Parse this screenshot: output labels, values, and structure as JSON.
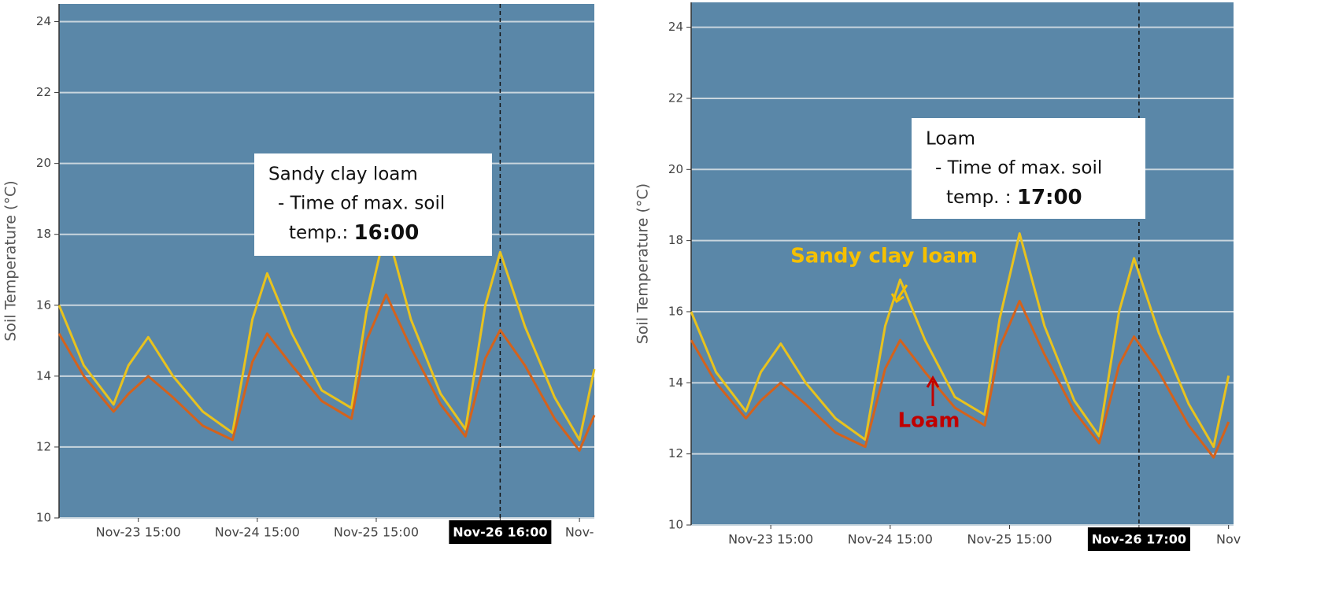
{
  "chart_data": [
    {
      "type": "line",
      "ylabel": "Soil Temperature (°C)",
      "x": [
        "Nov-22 23:00",
        "Nov-23 04:00",
        "Nov-23 10:00",
        "Nov-23 13:00",
        "Nov-23 17:00",
        "Nov-23 22:00",
        "Nov-24 04:00",
        "Nov-24 10:00",
        "Nov-24 14:00",
        "Nov-24 17:00",
        "Nov-24 22:00",
        "Nov-25 04:00",
        "Nov-25 10:00",
        "Nov-25 13:00",
        "Nov-25 17:00",
        "Nov-25 22:00",
        "Nov-26 04:00",
        "Nov-26 09:00",
        "Nov-26 13:00",
        "Nov-26 16:00",
        "Nov-26 21:00",
        "Nov-27 03:00",
        "Nov-27 08:00",
        "Nov-27 11:00"
      ],
      "series": [
        {
          "color": "#e8c21e",
          "values": [
            16.0,
            14.3,
            13.2,
            14.3,
            15.1,
            14.0,
            13.0,
            12.4,
            15.6,
            16.9,
            15.2,
            13.6,
            13.1,
            15.8,
            18.2,
            15.6,
            13.5,
            12.5,
            16.0,
            17.5,
            15.4,
            13.4,
            12.2,
            14.2
          ]
        },
        {
          "color": "#d4621c",
          "values": [
            15.2,
            14.0,
            13.0,
            13.5,
            14.0,
            13.4,
            12.6,
            12.2,
            14.4,
            15.2,
            14.3,
            13.3,
            12.8,
            15.0,
            16.3,
            14.8,
            13.2,
            12.3,
            14.5,
            15.3,
            14.3,
            12.8,
            11.9,
            12.9
          ]
        }
      ],
      "xlim": [
        "Nov-22 23:00",
        "Nov-27 11:00"
      ],
      "xticks": [
        "Nov-23 15:00",
        "Nov-24 15:00",
        "Nov-25 15:00",
        "Nov-26 16:00",
        {
          "value": "Nov-27 08:00",
          "label": "Nov-"
        }
      ],
      "crosshair": "Nov-26 16:00",
      "ylim": [
        10,
        24.5
      ],
      "yticks": [
        10,
        12,
        14,
        16,
        18,
        20,
        22,
        24
      ],
      "grid": true,
      "annotation": {
        "lines": [
          "Sandy clay loam",
          "- Time of max. soil"
        ],
        "last": "temp.: ",
        "emphasis": "16:00"
      }
    },
    {
      "type": "line",
      "ylabel": "Soil Temperature (°C)",
      "x": [
        "Nov-22 23:00",
        "Nov-23 04:00",
        "Nov-23 10:00",
        "Nov-23 13:00",
        "Nov-23 17:00",
        "Nov-23 22:00",
        "Nov-24 04:00",
        "Nov-24 10:00",
        "Nov-24 14:00",
        "Nov-24 17:00",
        "Nov-24 22:00",
        "Nov-25 04:00",
        "Nov-25 10:00",
        "Nov-25 13:00",
        "Nov-25 17:00",
        "Nov-25 22:00",
        "Nov-26 04:00",
        "Nov-26 09:00",
        "Nov-26 13:00",
        "Nov-26 16:00",
        "Nov-26 21:00",
        "Nov-27 03:00",
        "Nov-27 08:00",
        "Nov-27 11:00"
      ],
      "series": [
        {
          "name": "Sandy clay loam",
          "color": "#e8c21e",
          "values": [
            16.0,
            14.3,
            13.2,
            14.3,
            15.1,
            14.0,
            13.0,
            12.4,
            15.6,
            16.9,
            15.2,
            13.6,
            13.1,
            15.8,
            18.2,
            15.6,
            13.5,
            12.5,
            16.0,
            17.5,
            15.4,
            13.4,
            12.2,
            14.2
          ]
        },
        {
          "name": "Loam",
          "color": "#d4621c",
          "values": [
            15.2,
            14.0,
            13.0,
            13.5,
            14.0,
            13.4,
            12.6,
            12.2,
            14.4,
            15.2,
            14.3,
            13.3,
            12.8,
            15.0,
            16.3,
            14.8,
            13.2,
            12.3,
            14.5,
            15.3,
            14.3,
            12.8,
            11.9,
            12.9
          ]
        }
      ],
      "xlim": [
        "Nov-22 23:00",
        "Nov-27 12:00"
      ],
      "xticks": [
        "Nov-23 15:00",
        "Nov-24 15:00",
        "Nov-25 15:00",
        "Nov-26 17:00",
        {
          "value": "Nov-27 11:00",
          "label": "Nov"
        }
      ],
      "crosshair": "Nov-26 17:00",
      "ylim": [
        10,
        24.7
      ],
      "yticks": [
        10,
        12,
        14,
        16,
        18,
        20,
        22,
        24
      ],
      "grid": true,
      "annotation": {
        "lines": [
          "Loam",
          "- Time of max. soil"
        ],
        "last": "temp. : ",
        "emphasis": "17:00"
      }
    }
  ]
}
